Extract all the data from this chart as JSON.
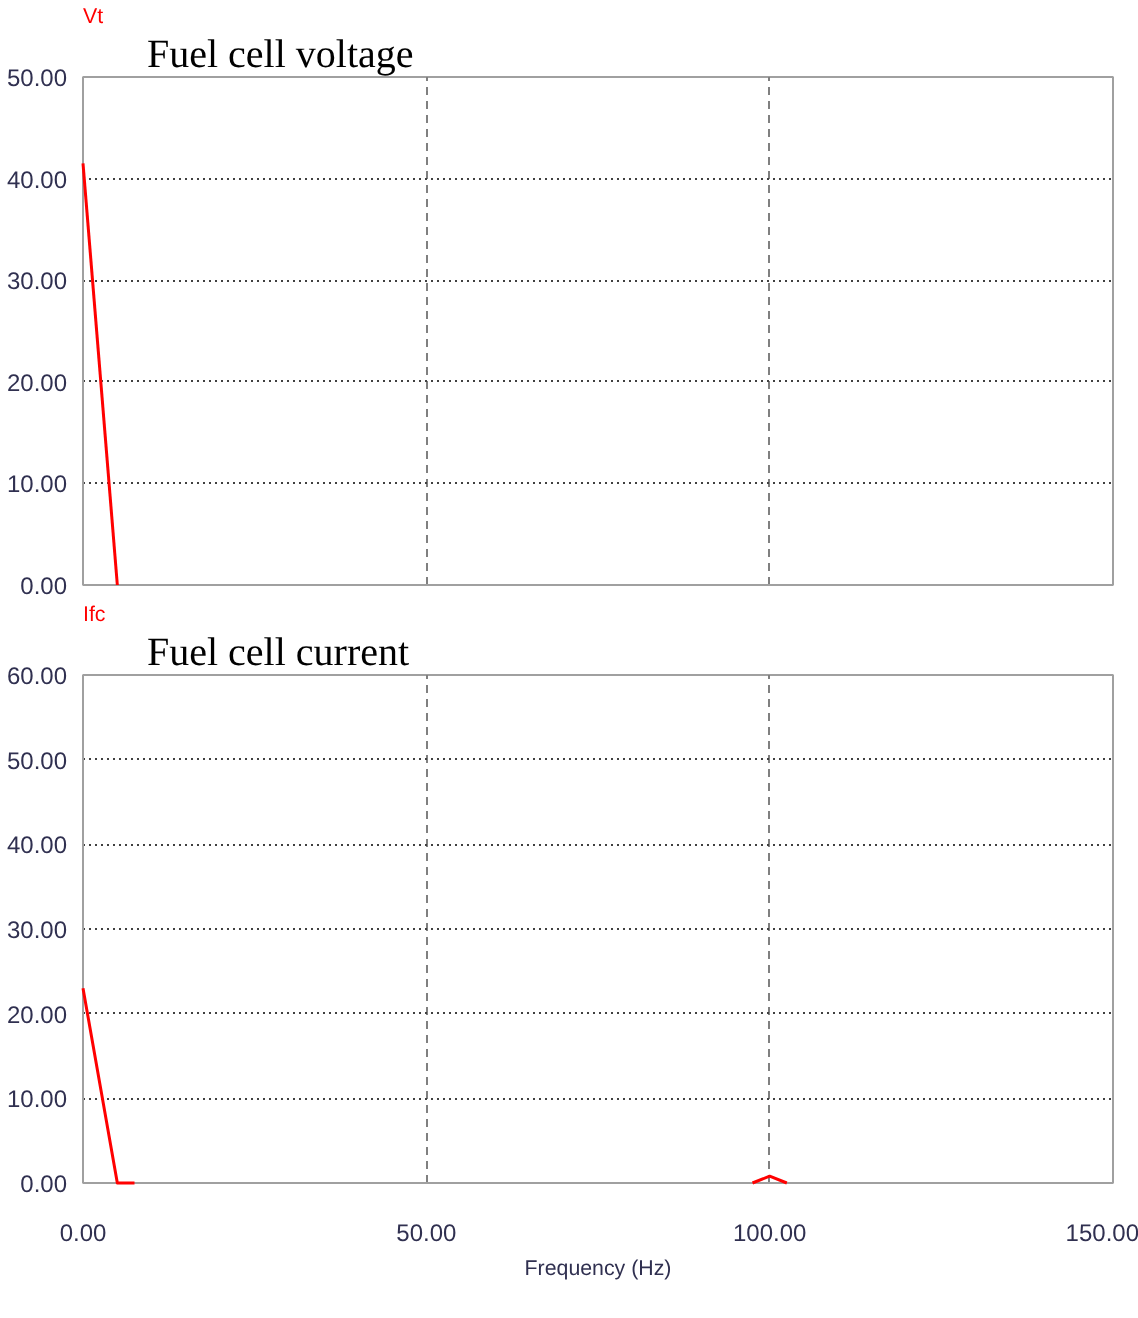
{
  "chart_data": [
    {
      "type": "line",
      "title": "Fuel cell voltage",
      "ylabel": "Vt",
      "xlim": [
        0,
        150
      ],
      "xticks": [
        {
          "value": 0,
          "label": null
        },
        {
          "value": 50,
          "label": null
        },
        {
          "value": 100,
          "label": null
        },
        {
          "value": 150,
          "label": null
        }
      ],
      "ylim": [
        0,
        50
      ],
      "yticks": [
        {
          "value": 0,
          "label": "0.00"
        },
        {
          "value": 10,
          "label": "10.00"
        },
        {
          "value": 20,
          "label": "20.00"
        },
        {
          "value": 30,
          "label": "30.00"
        },
        {
          "value": 40,
          "label": "40.00"
        },
        {
          "value": 50,
          "label": "50.00"
        }
      ],
      "grid": true,
      "tick_labels": "y",
      "series": [
        {
          "color": "#ff0000",
          "x": [
            0,
            5
          ],
          "values": [
            41.5,
            0
          ]
        }
      ]
    },
    {
      "type": "line",
      "title": "Fuel cell current",
      "ylabel": "Ifc",
      "xlabel": "Frequency (Hz)",
      "xlim": [
        0,
        150
      ],
      "xticks": [
        {
          "value": 0,
          "label": "0.00"
        },
        {
          "value": 50,
          "label": "50.00"
        },
        {
          "value": 100,
          "label": "100.00"
        },
        {
          "value": 150,
          "label": "150.00"
        }
      ],
      "ylim": [
        0,
        60
      ],
      "yticks": [
        {
          "value": 0,
          "label": "0.00"
        },
        {
          "value": 10,
          "label": "10.00"
        },
        {
          "value": 20,
          "label": "20.00"
        },
        {
          "value": 30,
          "label": "30.00"
        },
        {
          "value": 40,
          "label": "40.00"
        },
        {
          "value": 50,
          "label": "50.00"
        },
        {
          "value": 60,
          "label": "60.00"
        }
      ],
      "grid": true,
      "series": [
        {
          "color": "#ff0000",
          "x": [
            0,
            5,
            7.5
          ],
          "values": [
            23,
            0,
            0
          ]
        },
        {
          "color": "#ff0000",
          "x": [
            97.5,
            100,
            102.5
          ],
          "values": [
            0,
            0.8,
            0
          ]
        }
      ]
    }
  ]
}
